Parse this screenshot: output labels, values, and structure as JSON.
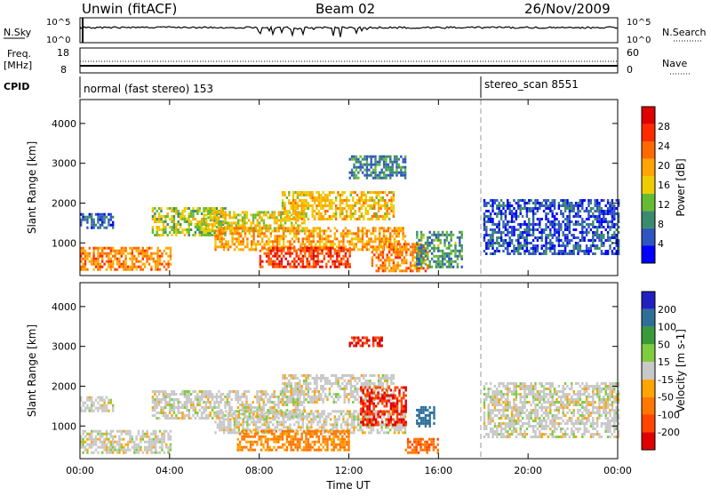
{
  "header": {
    "station": "Unwin (fitACF)",
    "beam": "Beam 02",
    "date": "26/Nov/2009"
  },
  "strips": {
    "nsky": {
      "label": "N.Sky",
      "ticks_left": [
        "10^5",
        "10^0"
      ],
      "ticks_right": [
        "10^5",
        "10^0"
      ],
      "right_label": "N.Search"
    },
    "freq": {
      "label_line1": "Freq.",
      "label_line2": "[MHz]",
      "ticks_left": [
        "18",
        "8"
      ],
      "ticks_right": [
        "60",
        "0"
      ],
      "right_label": "Nave"
    },
    "cpid": {
      "label": "CPID",
      "entries": [
        {
          "text": "normal (fast stereo) 153",
          "start_hour": 0
        },
        {
          "text": "stereo_scan 8551",
          "start_hour": 18
        }
      ]
    }
  },
  "colors": {
    "power_scale": [
      "#0000ff",
      "#2f55c0",
      "#3a8a6e",
      "#66bb33",
      "#eecc00",
      "#ffa500",
      "#ff6a00",
      "#ff2a00",
      "#e00000"
    ],
    "velocity_scale": [
      "#2020c0",
      "#2e6f9a",
      "#3a9a3a",
      "#7fcc3f",
      "#c8c8c8",
      "#ffa500",
      "#ff7700",
      "#ff4500",
      "#e00000"
    ],
    "ground_scatter": "#c8c8c8"
  },
  "chart_data": [
    {
      "type": "heatmap",
      "ylabel": "Slant Range [km]",
      "x_unit": "Time UT (hours)",
      "xlim": [
        0,
        24
      ],
      "ylim": [
        180,
        4600
      ],
      "yticks": [
        1000,
        2000,
        3000,
        4000
      ],
      "colorbar": {
        "label": "Power [dB]",
        "ticks": [
          4,
          8,
          12,
          16,
          20,
          24,
          28
        ],
        "range": [
          0,
          32
        ]
      },
      "echo_regions": [
        {
          "t0": 0.0,
          "t1": 4.0,
          "r0": 300,
          "r1": 900,
          "level": 22
        },
        {
          "t0": 0.0,
          "t1": 1.5,
          "r0": 1400,
          "r1": 1750,
          "level": 6
        },
        {
          "t0": 3.2,
          "t1": 6.5,
          "r0": 1200,
          "r1": 1900,
          "level": 14
        },
        {
          "t0": 5.5,
          "t1": 10.0,
          "r0": 1300,
          "r1": 1800,
          "level": 16
        },
        {
          "t0": 6.0,
          "t1": 14.5,
          "r0": 800,
          "r1": 1400,
          "level": 20
        },
        {
          "t0": 8.0,
          "t1": 12.0,
          "r0": 400,
          "r1": 900,
          "level": 26
        },
        {
          "t0": 9.0,
          "t1": 14.0,
          "r0": 1600,
          "r1": 2300,
          "level": 18
        },
        {
          "t0": 12.0,
          "t1": 14.5,
          "r0": 2600,
          "r1": 3200,
          "level": 8
        },
        {
          "t0": 13.0,
          "t1": 15.5,
          "r0": 300,
          "r1": 1000,
          "level": 22
        },
        {
          "t0": 15.0,
          "t1": 17.0,
          "r0": 400,
          "r1": 1300,
          "level": 10
        },
        {
          "t0": 18.0,
          "t1": 24.0,
          "r0": 700,
          "r1": 2100,
          "level": 5
        }
      ]
    },
    {
      "type": "heatmap",
      "ylabel": "Slant Range [km]",
      "xlabel": "Time UT",
      "xlim": [
        0,
        24
      ],
      "ylim": [
        180,
        4600
      ],
      "yticks": [
        1000,
        2000,
        3000,
        4000
      ],
      "xticks": [
        "00:00",
        "04:00",
        "08:00",
        "12:00",
        "16:00",
        "20:00",
        "00:00"
      ],
      "xtick_hours": [
        0,
        4,
        8,
        12,
        16,
        20,
        24
      ],
      "colorbar": {
        "label": "Velocity [m s-1]",
        "ticks": [
          200,
          100,
          50,
          15,
          -15,
          -50,
          -100,
          -200
        ]
      },
      "echo_regions": [
        {
          "t0": 0.0,
          "t1": 4.0,
          "r0": 300,
          "r1": 900,
          "value": 0
        },
        {
          "t0": 0.0,
          "t1": 1.5,
          "r0": 1400,
          "r1": 1750,
          "value": 0
        },
        {
          "t0": 3.2,
          "t1": 10.0,
          "r0": 1200,
          "r1": 1900,
          "value": 0
        },
        {
          "t0": 6.0,
          "t1": 14.5,
          "r0": 800,
          "r1": 1400,
          "value": 0
        },
        {
          "t0": 7.0,
          "t1": 12.0,
          "r0": 400,
          "r1": 900,
          "value": -60
        },
        {
          "t0": 9.0,
          "t1": 14.0,
          "r0": 1600,
          "r1": 2300,
          "value": 0
        },
        {
          "t0": 12.5,
          "t1": 14.5,
          "r0": 1000,
          "r1": 2000,
          "value": -200
        },
        {
          "t0": 12.0,
          "t1": 13.5,
          "r0": 3000,
          "r1": 3250,
          "value": -200
        },
        {
          "t0": 14.5,
          "t1": 16.0,
          "r0": 350,
          "r1": 700,
          "value": -100
        },
        {
          "t0": 15.0,
          "t1": 15.8,
          "r0": 1000,
          "r1": 1500,
          "value": 150
        },
        {
          "t0": 18.0,
          "t1": 24.0,
          "r0": 700,
          "r1": 2100,
          "value": 0
        }
      ]
    }
  ]
}
